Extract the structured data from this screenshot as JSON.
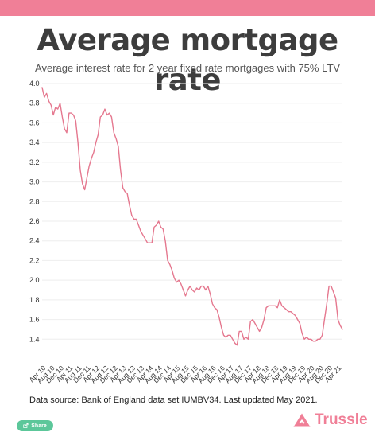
{
  "header": {
    "title": "Average mortgage rate",
    "subtitle": "Average interest rate for 2 year fixed rate mortgages with 75% LTV"
  },
  "footer": {
    "source_text": "Data source: Bank of England data set IUMBV34. Last updated May 2021.",
    "share_label": "Share",
    "logo_text": "Trussle"
  },
  "colors": {
    "brand_pink": "#f07f97",
    "line": "#e5788f",
    "share_green": "#5cc79a",
    "grid": "#eeeeee",
    "tick_text": "#333333"
  },
  "icons": {
    "share": "share-icon",
    "logo": "trussle-logo-icon"
  },
  "chart_data": {
    "type": "line",
    "title": "Average mortgage rate",
    "subtitle": "Average interest rate for 2 year fixed rate mortgages with 75% LTV",
    "xlabel": "",
    "ylabel": "",
    "ylim": [
      1.2,
      4.0
    ],
    "yticks": [
      "4.0",
      "3.8",
      "3.6",
      "3.4",
      "3.2",
      "3.0",
      "2.8",
      "2.6",
      "2.4",
      "2.2",
      "2.0",
      "1.8",
      "1.6",
      "1.4"
    ],
    "xticks": [
      "Apr 10",
      "Aug 10",
      "Dec 10",
      "Apr 11",
      "Aug 11",
      "Dec 11",
      "Apr 12",
      "Aug 12",
      "Dec 12",
      "Apr 13",
      "Aug 13",
      "Dec 13",
      "Apr 14",
      "Aug 14",
      "Dec 14",
      "Apr 15",
      "Aug 15",
      "Dec 15",
      "Apr 16",
      "Aug 16",
      "Dec 16",
      "Apr 17",
      "Aug 17",
      "Dec 17",
      "Apr 18",
      "Aug 18",
      "Dec 18",
      "Apr 19",
      "Aug 19",
      "Dec 19",
      "Apr 20",
      "Aug 20",
      "Dec 20",
      "Apr 21"
    ],
    "grid": true,
    "series": [
      {
        "values": [
          3.96,
          3.86,
          3.9,
          3.82,
          3.78,
          3.68,
          3.76,
          3.74,
          3.8,
          3.66,
          3.54,
          3.5,
          3.7,
          3.7,
          3.68,
          3.62,
          3.4,
          3.12,
          2.98,
          2.92,
          3.04,
          3.16,
          3.24,
          3.3,
          3.4,
          3.48,
          3.66,
          3.68,
          3.74,
          3.68,
          3.7,
          3.66,
          3.5,
          3.44,
          3.36,
          3.12,
          2.94,
          2.9,
          2.88,
          2.76,
          2.66,
          2.62,
          2.62,
          2.56,
          2.5,
          2.46,
          2.42,
          2.38,
          2.38,
          2.38,
          2.54,
          2.56,
          2.6,
          2.54,
          2.52,
          2.4,
          2.2,
          2.16,
          2.1,
          2.02,
          1.98,
          2.0,
          1.96,
          1.9,
          1.84,
          1.9,
          1.94,
          1.9,
          1.88,
          1.92,
          1.9,
          1.94,
          1.94,
          1.9,
          1.94,
          1.86,
          1.76,
          1.72,
          1.7,
          1.62,
          1.52,
          1.44,
          1.42,
          1.44,
          1.44,
          1.4,
          1.36,
          1.34,
          1.48,
          1.48,
          1.4,
          1.42,
          1.4,
          1.58,
          1.6,
          1.56,
          1.52,
          1.48,
          1.52,
          1.6,
          1.72,
          1.74,
          1.74,
          1.74,
          1.74,
          1.72,
          1.8,
          1.74,
          1.72,
          1.7,
          1.68,
          1.68,
          1.66,
          1.64,
          1.6,
          1.56,
          1.46,
          1.4,
          1.42,
          1.4,
          1.4,
          1.38,
          1.38,
          1.4,
          1.4,
          1.44,
          1.6,
          1.76,
          1.94,
          1.94,
          1.88,
          1.82,
          1.6,
          1.54,
          1.5
        ]
      }
    ]
  }
}
